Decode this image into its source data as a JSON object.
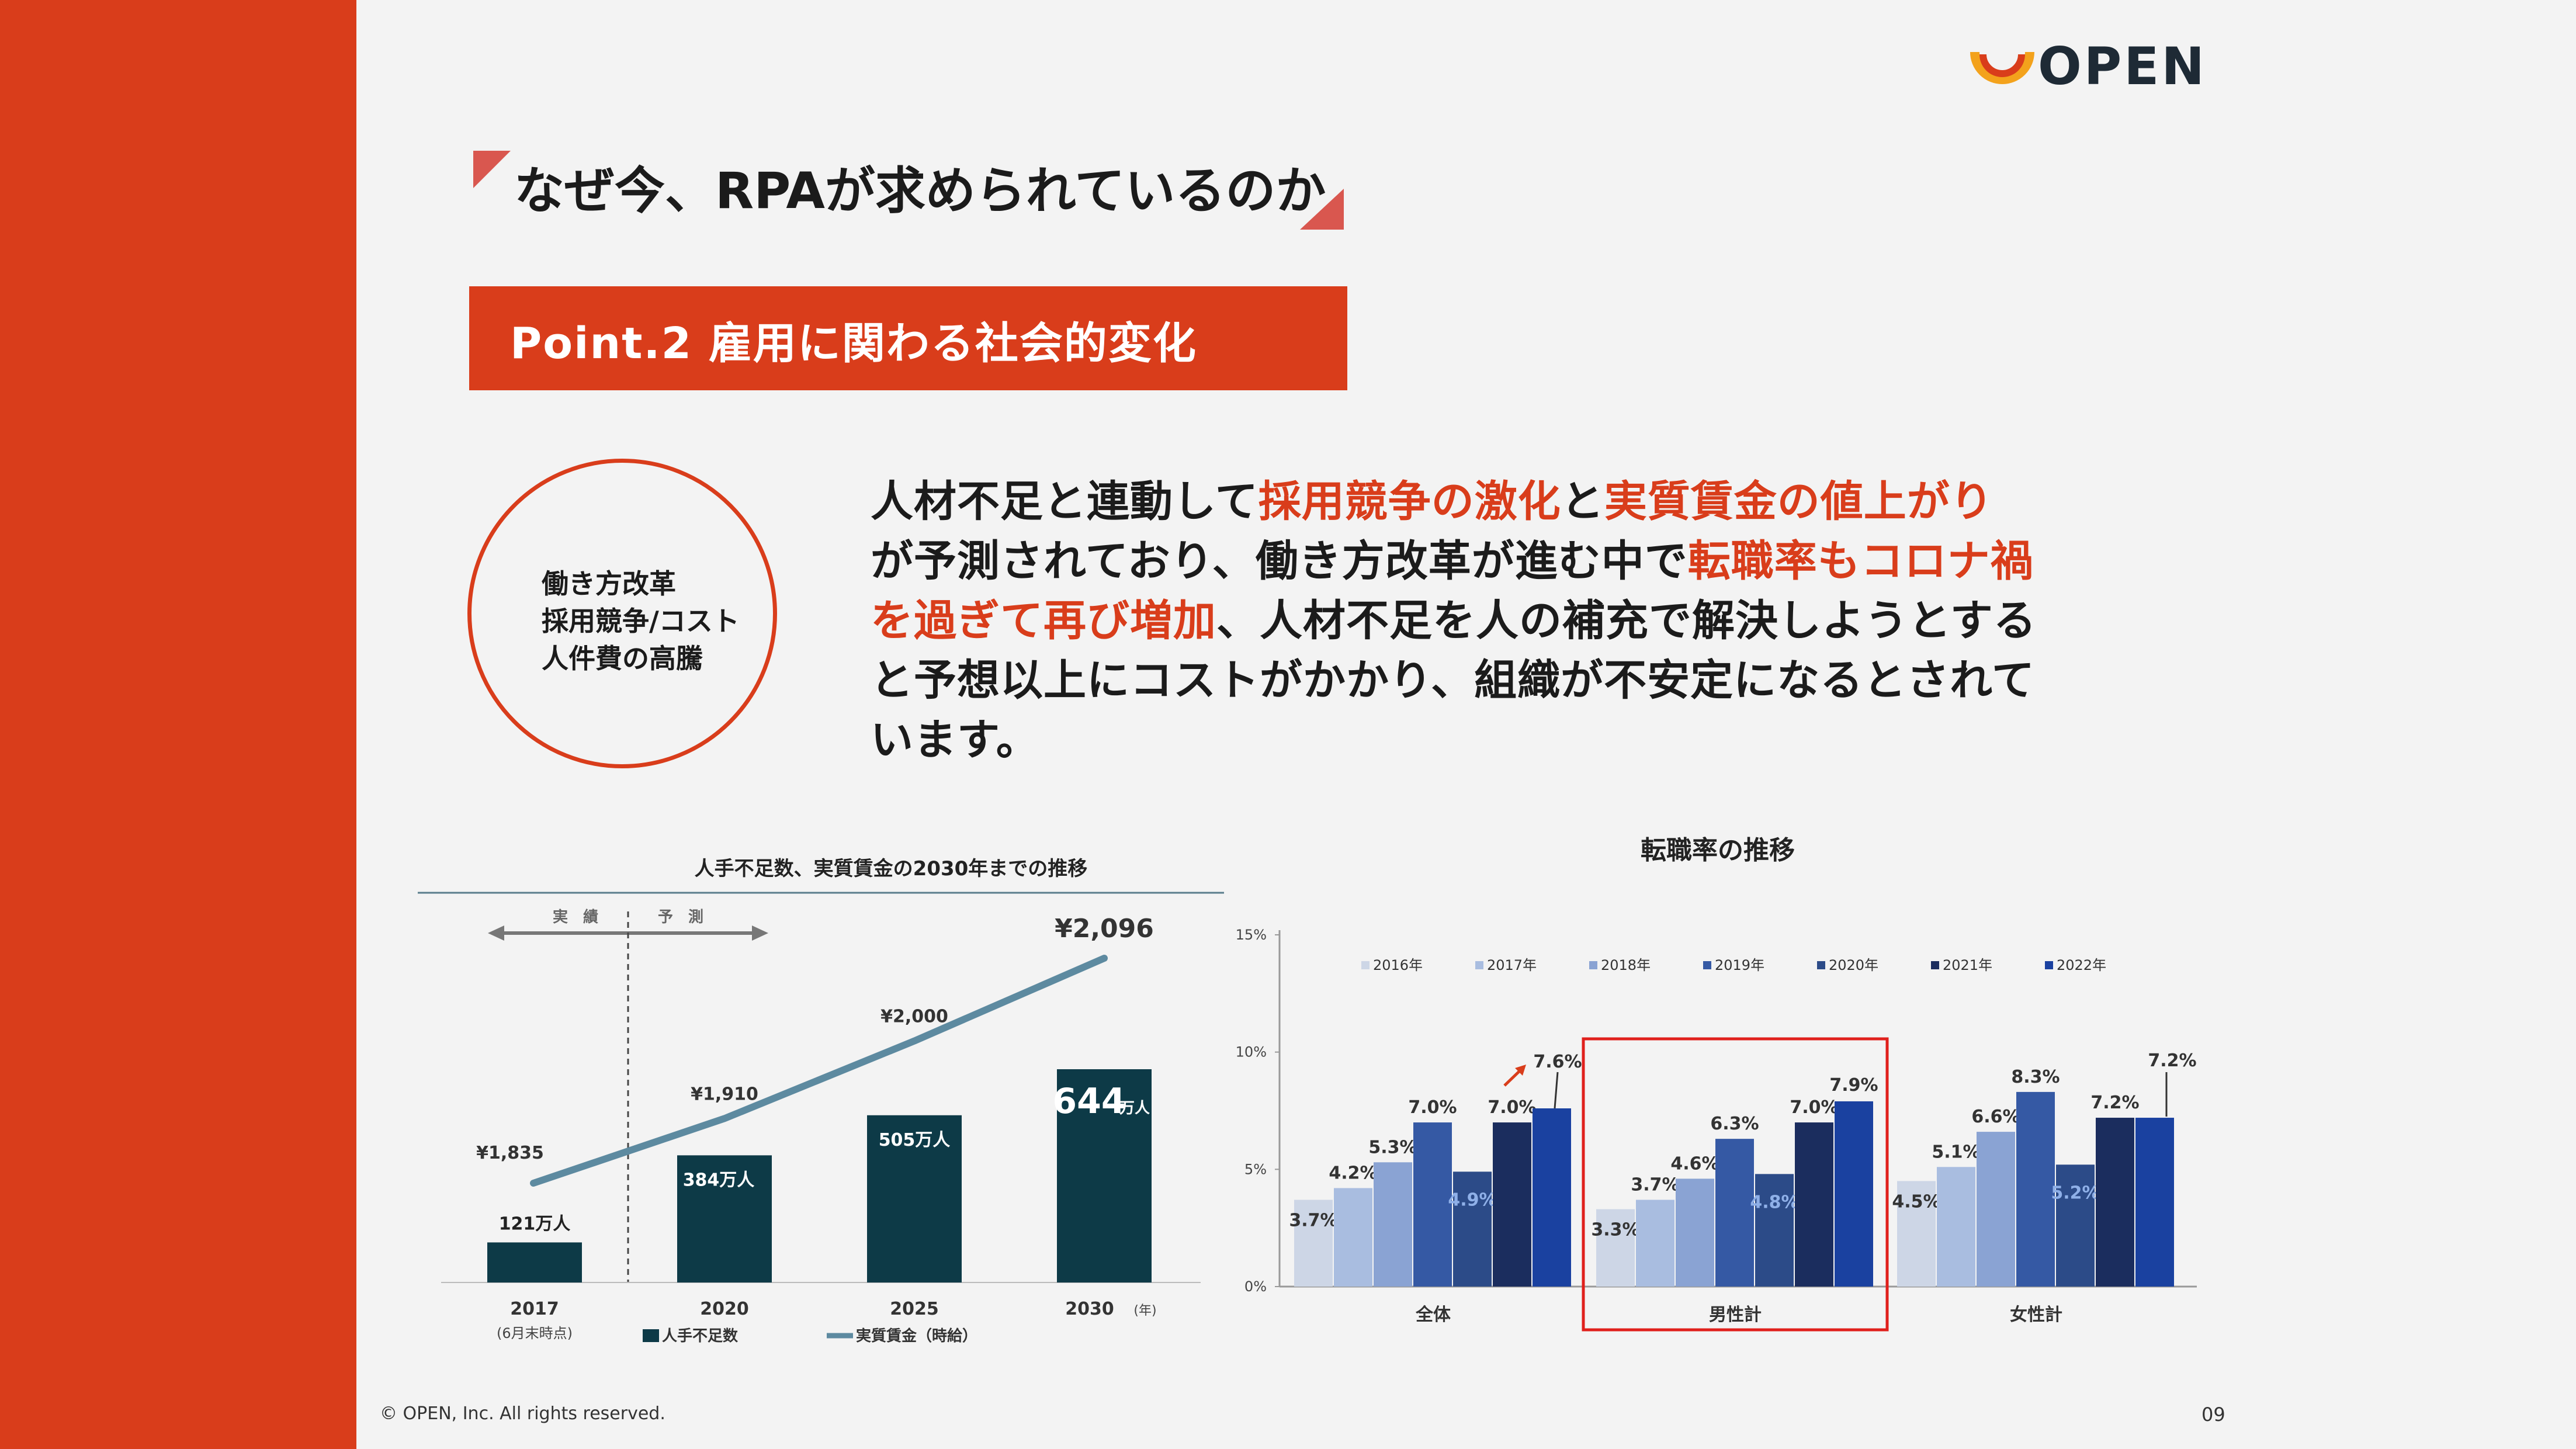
{
  "brand": {
    "logo_text": "OPEN",
    "accent": "#d93d1b",
    "dark": "#1e2a35"
  },
  "title": "なぜ今、RPAが求められているのか",
  "point_label": "Point.2 雇用に関わる社会的変化",
  "circle_items": [
    "働き方改革",
    "採用競争/コスト",
    "人件費の高騰"
  ],
  "body": {
    "l1a": "人材不足と連動して",
    "l1b": "採用競争の激化",
    "l1c": "と",
    "l1d": "実質賃金の値上がり",
    "l2a": "が予測されており、働き方改革が進む中で",
    "l2b": "転職率もコロナ禍",
    "l3a": "を過ぎて再び増加",
    "l3b": "、人材不足を人の補充で解決しようとする",
    "l4": "と予想以上にコストがかかり、組織が不安定になるとされて",
    "l5": "います。"
  },
  "chart_data": [
    {
      "type": "bar",
      "title": "人手不足数、実質賃金の2030年までの推移",
      "legend_top": {
        "actual": "実　績",
        "forecast": "予　測"
      },
      "categories": [
        "2017",
        "2020",
        "2025",
        "2030"
      ],
      "category_notes": [
        "(6月末時点)",
        "",
        "",
        "(年)"
      ],
      "series": [
        {
          "name": "人手不足数",
          "type": "bar",
          "values": [
            121,
            384,
            505,
            644
          ],
          "labels": [
            "121万人",
            "384万人",
            "505万人",
            "644万人"
          ],
          "color": "#0d3a47"
        },
        {
          "name": "実質賃金（時給）",
          "type": "line",
          "values": [
            1835,
            1910,
            2000,
            2096
          ],
          "labels": [
            "¥1,835",
            "¥1,910",
            "¥2,000",
            "¥2,096"
          ],
          "color": "#5d8aa0"
        }
      ],
      "big_label": {
        "value": "644",
        "unit": "万人"
      }
    },
    {
      "type": "bar",
      "title": "転職率の推移",
      "categories": [
        "全体",
        "男性計",
        "女性計"
      ],
      "ylim": [
        0,
        15
      ],
      "yticks": [
        "0%",
        "5%",
        "10%",
        "15%"
      ],
      "legend_position": "top",
      "series": [
        {
          "name": "2016年",
          "values": [
            3.7,
            3.3,
            4.5
          ],
          "color": "#cdd6e6"
        },
        {
          "name": "2017年",
          "values": [
            4.2,
            3.7,
            5.1
          ],
          "color": "#a9bde0"
        },
        {
          "name": "2018年",
          "values": [
            5.3,
            4.6,
            6.6
          ],
          "color": "#8aa3d3"
        },
        {
          "name": "2019年",
          "values": [
            7.0,
            6.3,
            8.3
          ],
          "color": "#3559a4"
        },
        {
          "name": "2020年",
          "values": [
            4.9,
            4.8,
            5.2
          ],
          "color": "#2c4b88"
        },
        {
          "name": "2021年",
          "values": [
            7.0,
            7.0,
            7.2
          ],
          "color": "#1b2d5e"
        },
        {
          "name": "2022年",
          "values": [
            7.6,
            7.9,
            7.2
          ],
          "color": "#1a41a0"
        }
      ],
      "highlight_category": "男性計"
    }
  ],
  "footer": "© OPEN, Inc. All rights reserved.",
  "page_number": "09"
}
